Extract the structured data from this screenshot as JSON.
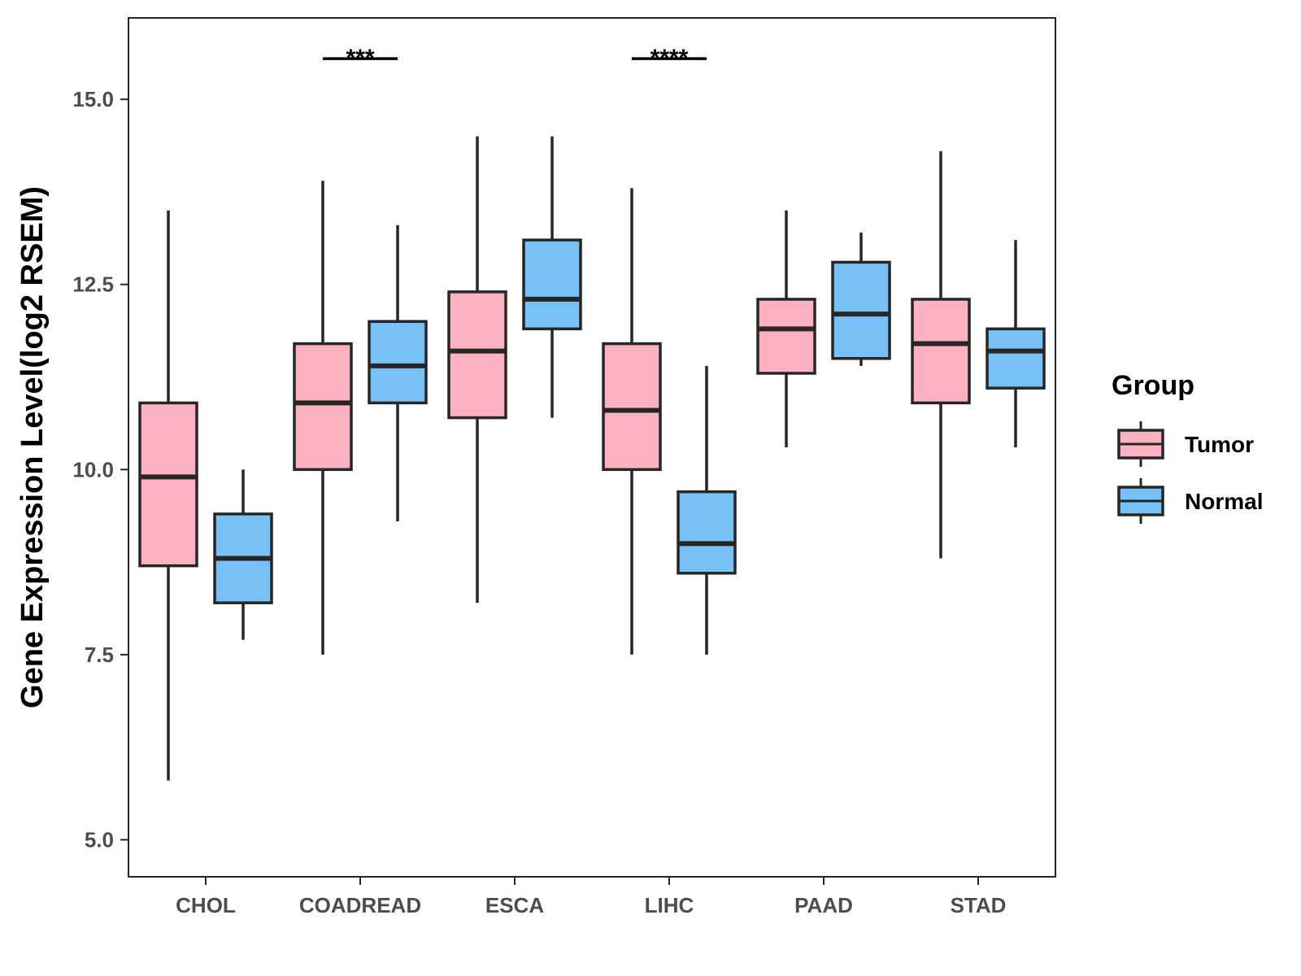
{
  "chart_data": {
    "type": "boxplot",
    "title": "",
    "xlabel": "",
    "ylabel": "Gene Expression Level(log2 RSEM)",
    "ylim": [
      4.5,
      16.1
    ],
    "yticks": [
      5.0,
      7.5,
      10.0,
      12.5,
      15.0
    ],
    "ytick_labels": [
      "5.0",
      "7.5",
      "10.0",
      "12.5",
      "15.0"
    ],
    "categories": [
      "CHOL",
      "COADREAD",
      "ESCA",
      "LIHC",
      "PAAD",
      "STAD"
    ],
    "legend": {
      "title": "Group",
      "placement": "right",
      "entries": [
        "Tumor",
        "Normal"
      ]
    },
    "colors": {
      "Tumor": "#fbb1c2",
      "Normal": "#77c1f7",
      "outline": "#262626"
    },
    "series": [
      {
        "name": "Tumor",
        "boxes": [
          {
            "category": "CHOL",
            "min": 5.8,
            "q1": 8.7,
            "median": 9.9,
            "q3": 10.9,
            "max": 13.5
          },
          {
            "category": "COADREAD",
            "min": 7.5,
            "q1": 10.0,
            "median": 10.9,
            "q3": 11.7,
            "max": 13.9
          },
          {
            "category": "ESCA",
            "min": 8.2,
            "q1": 10.7,
            "median": 11.6,
            "q3": 12.4,
            "max": 14.5
          },
          {
            "category": "LIHC",
            "min": 7.5,
            "q1": 10.0,
            "median": 10.8,
            "q3": 11.7,
            "max": 13.8
          },
          {
            "category": "PAAD",
            "min": 10.3,
            "q1": 11.3,
            "median": 11.9,
            "q3": 12.3,
            "max": 13.5
          },
          {
            "category": "STAD",
            "min": 8.8,
            "q1": 10.9,
            "median": 11.7,
            "q3": 12.3,
            "max": 14.3
          }
        ]
      },
      {
        "name": "Normal",
        "boxes": [
          {
            "category": "CHOL",
            "min": 7.7,
            "q1": 8.2,
            "median": 8.8,
            "q3": 9.4,
            "max": 10.0
          },
          {
            "category": "COADREAD",
            "min": 9.3,
            "q1": 10.9,
            "median": 11.4,
            "q3": 12.0,
            "max": 13.3
          },
          {
            "category": "ESCA",
            "min": 10.7,
            "q1": 11.9,
            "median": 12.3,
            "q3": 13.1,
            "max": 14.5
          },
          {
            "category": "LIHC",
            "min": 7.5,
            "q1": 8.6,
            "median": 9.0,
            "q3": 9.7,
            "max": 11.4
          },
          {
            "category": "PAAD",
            "min": 11.4,
            "q1": 11.5,
            "median": 12.1,
            "q3": 12.8,
            "max": 13.2
          },
          {
            "category": "STAD",
            "min": 10.3,
            "q1": 11.1,
            "median": 11.6,
            "q3": 11.9,
            "max": 13.1
          }
        ]
      }
    ],
    "significance": [
      {
        "category": "COADREAD",
        "label": "***",
        "y": 15.55
      },
      {
        "category": "LIHC",
        "label": "****",
        "y": 15.55
      }
    ]
  }
}
